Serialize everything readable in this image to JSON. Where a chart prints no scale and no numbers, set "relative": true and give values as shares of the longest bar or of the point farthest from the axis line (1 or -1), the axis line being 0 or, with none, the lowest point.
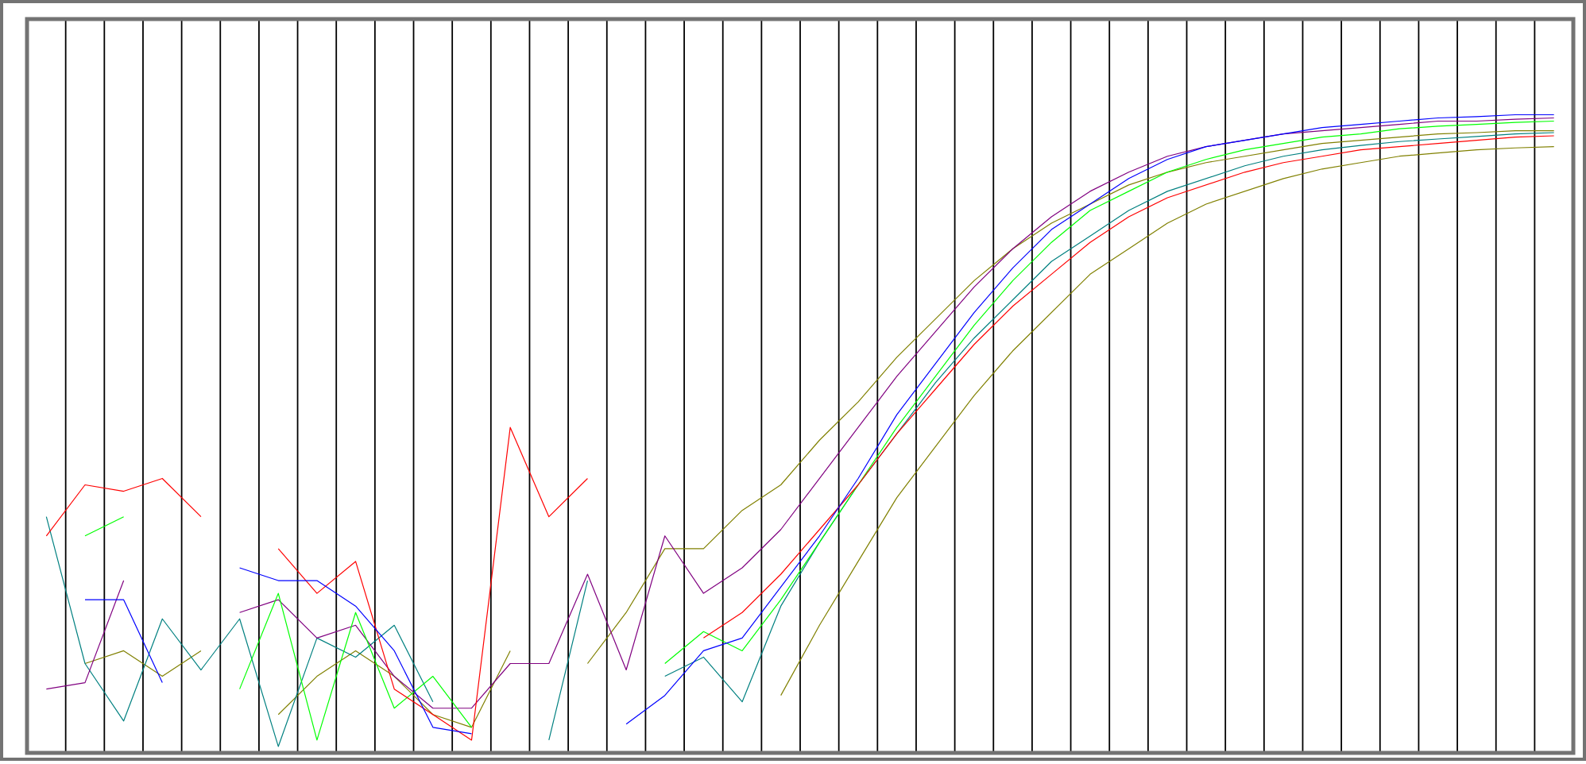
{
  "chart_data": {
    "type": "line",
    "relative": true,
    "grid": "x",
    "tick_labels": false,
    "marker": "none",
    "line_style": "solid",
    "categories": [
      null,
      null,
      null,
      null,
      null,
      null,
      null,
      null,
      null,
      null,
      null,
      null,
      null,
      null,
      null,
      null,
      null,
      null,
      null,
      null,
      null,
      null,
      null,
      null,
      null,
      null,
      null,
      null,
      null,
      null,
      null,
      null,
      null,
      null,
      null,
      null,
      null,
      null,
      null,
      null
    ],
    "series": [
      {
        "color": "#808000",
        "values": [
          null,
          0.14,
          0.16,
          0.12,
          0.16,
          null,
          0.06,
          0.12,
          0.16,
          0.12,
          0.06,
          0.04,
          0.16,
          null,
          0.14,
          0.22,
          0.32,
          0.32,
          0.38,
          0.42,
          0.49,
          0.55,
          0.62,
          0.68,
          0.74,
          0.79,
          0.83,
          0.86,
          0.89,
          0.91,
          0.925,
          0.935,
          0.945,
          0.955,
          0.96,
          0.965,
          0.97,
          0.972,
          0.975,
          0.975
        ]
      },
      {
        "color": "#808000",
        "values": [
          null,
          null,
          null,
          null,
          null,
          null,
          null,
          null,
          null,
          null,
          null,
          null,
          null,
          null,
          null,
          null,
          null,
          null,
          null,
          0.09,
          0.2,
          0.3,
          0.4,
          0.48,
          0.56,
          0.63,
          0.69,
          0.75,
          0.79,
          0.83,
          0.86,
          0.88,
          0.9,
          0.915,
          0.925,
          0.935,
          0.94,
          0.945,
          0.948,
          0.95
        ]
      },
      {
        "color": "#008080",
        "values": [
          0.37,
          0.14,
          0.05,
          0.21,
          0.13,
          0.21,
          0.01,
          0.18,
          0.15,
          0.2,
          0.08,
          null,
          null,
          0.02,
          0.27,
          null,
          0.12,
          0.15,
          0.08,
          0.23,
          0.33,
          0.42,
          0.5,
          0.58,
          0.65,
          0.71,
          0.77,
          0.81,
          0.85,
          0.88,
          0.9,
          0.92,
          0.935,
          0.945,
          0.952,
          0.958,
          0.962,
          0.966,
          0.97,
          0.972
        ]
      },
      {
        "color": "#800080",
        "values": [
          0.1,
          0.11,
          0.27,
          null,
          null,
          0.22,
          0.24,
          0.18,
          0.2,
          0.12,
          0.07,
          0.07,
          0.14,
          0.14,
          0.28,
          0.13,
          0.34,
          0.25,
          0.29,
          0.35,
          0.43,
          0.51,
          0.59,
          0.66,
          0.73,
          0.79,
          0.84,
          0.88,
          0.91,
          0.935,
          0.95,
          0.96,
          0.97,
          0.975,
          0.98,
          0.985,
          0.99,
          0.99,
          0.993,
          0.995
        ]
      },
      {
        "color": "#00ff00",
        "values": [
          null,
          0.34,
          0.37,
          null,
          null,
          0.1,
          0.25,
          0.02,
          0.22,
          0.07,
          0.12,
          0.04,
          null,
          null,
          null,
          null,
          0.14,
          0.19,
          0.16,
          0.24,
          0.33,
          0.42,
          0.51,
          0.59,
          0.67,
          0.74,
          0.8,
          0.85,
          0.88,
          0.91,
          0.93,
          0.945,
          0.955,
          0.965,
          0.97,
          0.978,
          0.982,
          0.985,
          0.988,
          0.99
        ]
      },
      {
        "color": "#ff0000",
        "values": [
          0.34,
          0.42,
          0.41,
          0.43,
          0.37,
          null,
          0.32,
          0.25,
          0.3,
          0.1,
          0.06,
          0.02,
          0.51,
          0.37,
          0.43,
          null,
          null,
          0.18,
          0.22,
          0.28,
          0.35,
          0.42,
          0.5,
          0.57,
          0.64,
          0.7,
          0.75,
          0.8,
          0.84,
          0.87,
          0.89,
          0.91,
          0.925,
          0.935,
          0.945,
          0.95,
          0.955,
          0.96,
          0.965,
          0.967
        ]
      },
      {
        "color": "#0000ff",
        "values": [
          null,
          0.24,
          0.24,
          0.11,
          null,
          0.29,
          0.27,
          0.27,
          0.23,
          0.16,
          0.04,
          0.03,
          null,
          null,
          null,
          0.045,
          0.09,
          0.16,
          0.18,
          0.26,
          0.34,
          0.43,
          0.53,
          0.61,
          0.69,
          0.76,
          0.82,
          0.86,
          0.9,
          0.93,
          0.95,
          0.96,
          0.97,
          0.98,
          0.985,
          0.99,
          0.995,
          0.997,
          1.0,
          1.0
        ]
      }
    ]
  }
}
